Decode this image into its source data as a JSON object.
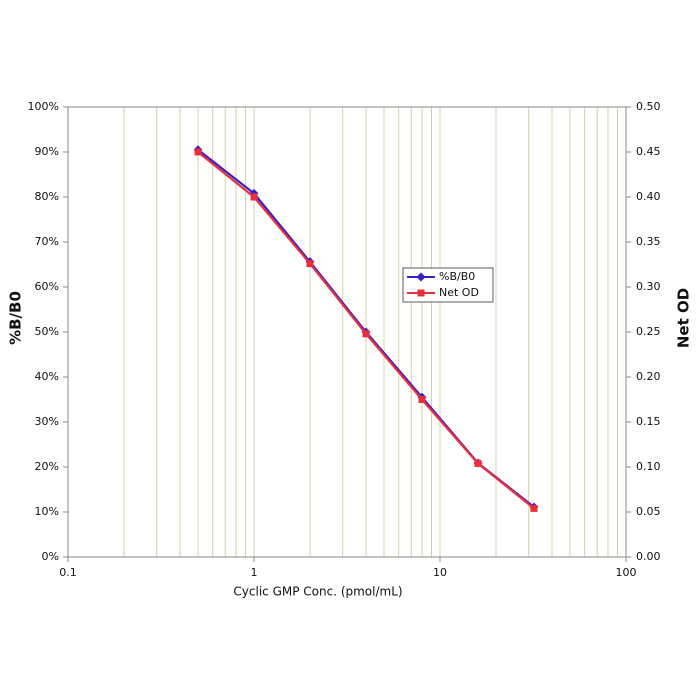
{
  "chart_data": {
    "type": "line",
    "xlabel": "Cyclic GMP Conc. (pmol/mL)",
    "ylabel": "%B/B0",
    "y2label": "Net OD",
    "x": [
      0.5,
      1,
      2,
      4,
      8,
      16,
      32
    ],
    "series": [
      {
        "name": "%B/B0",
        "color": "#3a1fc8",
        "marker": "diamond",
        "values": [
          90.5,
          80.8,
          65.6,
          50,
          35.5,
          20.9,
          11.1
        ]
      },
      {
        "name": "Net OD",
        "color": "#e8303a",
        "marker": "square",
        "axis": "y2",
        "values": [
          0.45,
          0.4,
          0.326,
          0.248,
          0.175,
          0.104,
          0.054
        ]
      }
    ],
    "xscale": "log",
    "xlim": [
      0.1,
      100
    ],
    "xticks": [
      0.1,
      1,
      10,
      100
    ],
    "ylim": [
      0,
      100
    ],
    "yticks": [
      {
        "value": 0,
        "label": "0%"
      },
      {
        "value": 10,
        "label": "10%"
      },
      {
        "value": 20,
        "label": "20%"
      },
      {
        "value": 30,
        "label": "30%"
      },
      {
        "value": 40,
        "label": "40%"
      },
      {
        "value": 50,
        "label": "50%"
      },
      {
        "value": 60,
        "label": "60%"
      },
      {
        "value": 70,
        "label": "70%"
      },
      {
        "value": 80,
        "label": "80%"
      },
      {
        "value": 90,
        "label": "90%"
      },
      {
        "value": 100,
        "label": "100%"
      }
    ],
    "y2lim": [
      0,
      0.5
    ],
    "y2ticks": [
      {
        "value": 0,
        "label": "0.00"
      },
      {
        "value": 0.05,
        "label": "0.05"
      },
      {
        "value": 0.1,
        "label": "0.10"
      },
      {
        "value": 0.15,
        "label": "0.15"
      },
      {
        "value": 0.2,
        "label": "0.20"
      },
      {
        "value": 0.25,
        "label": "0.25"
      },
      {
        "value": 0.3,
        "label": "0.30"
      },
      {
        "value": 0.35,
        "label": "0.35"
      },
      {
        "value": 0.4,
        "label": "0.40"
      },
      {
        "value": 0.45,
        "label": "0.45"
      },
      {
        "value": 0.5,
        "label": "0.50"
      }
    ],
    "grid": true,
    "grid_color": "#c8c896",
    "legend_position": "right"
  }
}
